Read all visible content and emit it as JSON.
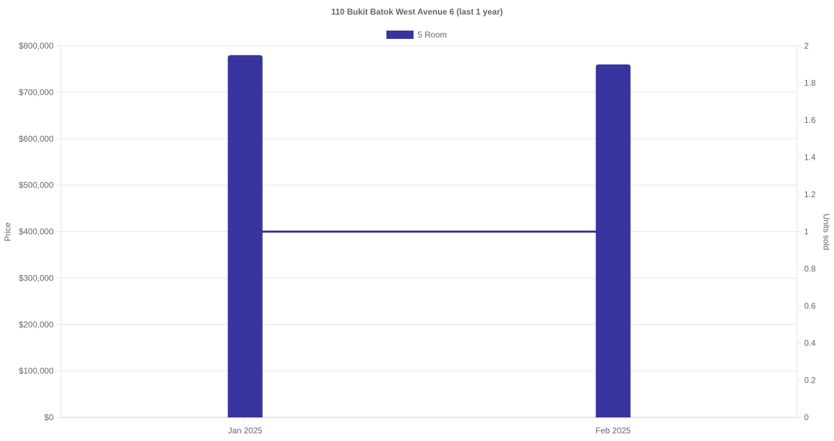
{
  "chart_data": {
    "type": "bar",
    "title": "110 Bukit Batok West Avenue 6 (last 1 year)",
    "categories": [
      "Jan 2025",
      "Feb 2025"
    ],
    "series": [
      {
        "name": "5 Room",
        "type": "bar",
        "axis": "left",
        "values": [
          780000,
          760000
        ],
        "color": "#3834a0"
      },
      {
        "type": "line",
        "axis": "right",
        "values": [
          1,
          1
        ],
        "color": "#3834a0"
      }
    ],
    "ylabel": "Price",
    "y2label": "Units sold",
    "ylim": [
      0,
      800000
    ],
    "y2lim": [
      0,
      2
    ],
    "yticks": [
      "$0",
      "$100,000",
      "$200,000",
      "$300,000",
      "$400,000",
      "$500,000",
      "$600,000",
      "$700,000",
      "$800,000"
    ],
    "y2ticks": [
      "0",
      "0.2",
      "0.4",
      "0.6",
      "0.8",
      "1",
      "1.2",
      "1.4",
      "1.6",
      "1.8",
      "2"
    ],
    "grid": true,
    "legend": "top"
  }
}
